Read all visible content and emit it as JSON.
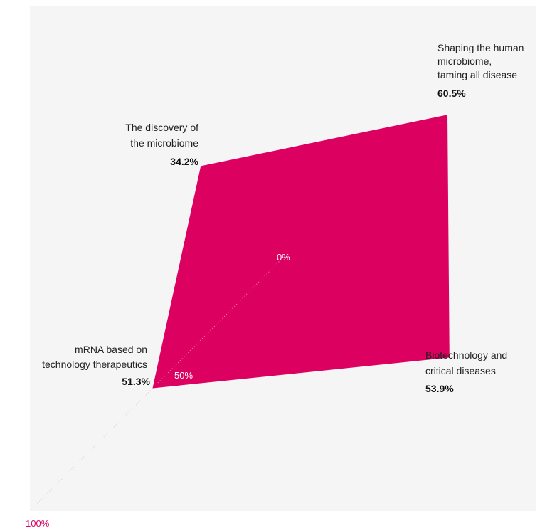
{
  "chart_data": {
    "type": "radar",
    "title": "",
    "axes": [
      {
        "label": [
          "Shaping the human",
          "microbiome,",
          "taming all disease"
        ],
        "value": 60.5,
        "value_label": "60.5%"
      },
      {
        "label": [
          "Biotechnology and",
          "critical diseases"
        ],
        "value": 53.9,
        "value_label": "53.9%"
      },
      {
        "label": [
          "mRNA based on",
          "technology therapeutics"
        ],
        "value": 51.3,
        "value_label": "51.3%"
      },
      {
        "label": [
          "The discovery of",
          "the microbiome"
        ],
        "value": 34.2,
        "value_label": "34.2%"
      }
    ],
    "range": [
      0,
      100
    ],
    "ticks": [
      {
        "value": 0,
        "label": "0%"
      },
      {
        "value": 50,
        "label": "50%"
      },
      {
        "value": 100,
        "label": "100%"
      }
    ],
    "colors": {
      "fill": "#dc0060",
      "background": "#f5f5f5",
      "tick_inside": "#ffffff",
      "tick_outside": "#dc0060",
      "axis_line": "#cccccc"
    },
    "grid": false
  }
}
